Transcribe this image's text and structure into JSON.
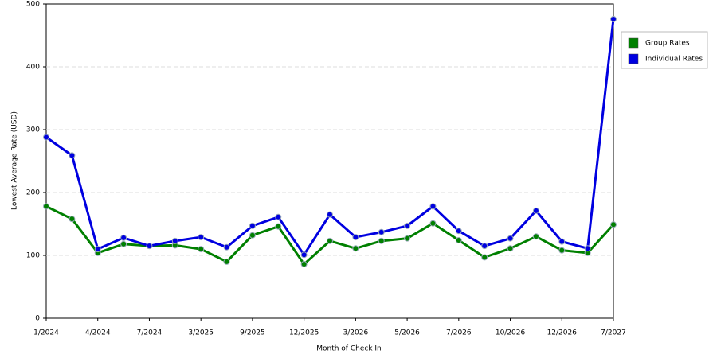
{
  "chart_data": {
    "type": "line",
    "x_label": "Month of Check In",
    "y_label": "Lowest Average Rate (USD)",
    "categories": [
      "1/2024",
      null,
      "4/2024",
      null,
      "7/2024",
      null,
      "3/2025",
      null,
      "9/2025",
      null,
      "12/2025",
      null,
      "3/2026",
      null,
      "5/2026",
      null,
      "7/2026",
      null,
      "10/2026",
      null,
      "12/2026",
      null,
      "7/2027"
    ],
    "series": [
      {
        "name": "Group Rates",
        "color": "#008000",
        "values": [
          178,
          158,
          104,
          118,
          115,
          116,
          110,
          90,
          132,
          146,
          86,
          123,
          111,
          123,
          127,
          151,
          124,
          97,
          111,
          130,
          108,
          104,
          149
        ]
      },
      {
        "name": "Individual Rates",
        "color": "#0000e0",
        "values": [
          288,
          259,
          110,
          128,
          115,
          123,
          129,
          113,
          147,
          161,
          101,
          165,
          129,
          137,
          147,
          178,
          139,
          115,
          127,
          171,
          122,
          111,
          476
        ]
      }
    ],
    "ylim": [
      0,
      500
    ],
    "yticks": [
      0,
      100,
      200,
      300,
      400,
      500
    ],
    "grid": true,
    "legend": "right"
  }
}
